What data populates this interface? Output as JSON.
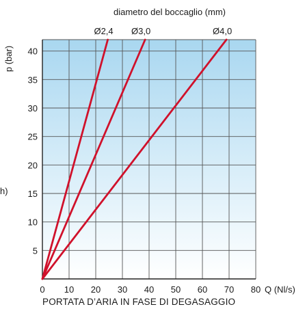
{
  "chart_data": {
    "type": "line",
    "top_title": "diametro del boccaglio (mm)",
    "xlabel": "Q (Nl/s)",
    "ylabel": "p (bar)",
    "left_edge_label": "h)",
    "bottom_title": "PORTATA D’ARIA IN FASE DI DEGASAGGIO",
    "xlim": [
      0,
      80
    ],
    "ylim": [
      0,
      42
    ],
    "x_ticks": [
      0,
      10,
      20,
      30,
      40,
      50,
      60,
      70,
      80
    ],
    "x_tick_labels": [
      "0",
      "10",
      "20",
      "30",
      "40",
      "50",
      "60",
      "70",
      "80"
    ],
    "y_ticks": [
      5,
      10,
      15,
      20,
      25,
      30,
      35,
      40
    ],
    "y_tick_labels": [
      "5",
      "10",
      "15",
      "20",
      "25",
      "30",
      "35",
      "40"
    ],
    "grid": true,
    "series": [
      {
        "name": "Ø2,4",
        "x": [
          0,
          24.5
        ],
        "y": [
          0,
          42
        ]
      },
      {
        "name": "Ø3,0",
        "x": [
          0,
          38.5
        ],
        "y": [
          0,
          42
        ]
      },
      {
        "name": "Ø4,0",
        "x": [
          0,
          69.0
        ],
        "y": [
          0,
          42
        ]
      }
    ],
    "colors": {
      "line": "#d0112b",
      "grid": "#555555",
      "bg_top": "#a9d7f0",
      "bg_bottom": "#ffffff"
    }
  }
}
